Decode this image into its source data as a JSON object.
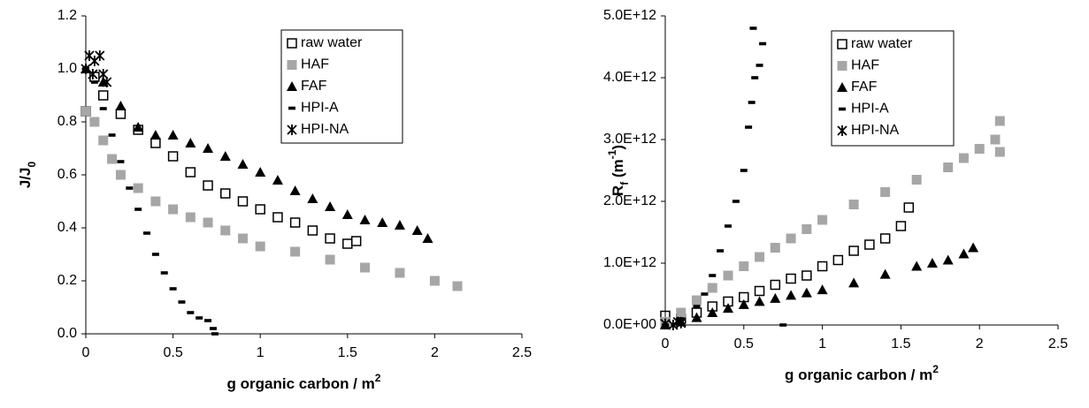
{
  "chart_data": [
    {
      "type": "scatter",
      "xlabel_parts": [
        {
          "text": "g organic carbon / m"
        },
        {
          "text": "2",
          "script": "sup"
        }
      ],
      "ylabel_parts": [
        {
          "text": "J/J"
        },
        {
          "text": "0",
          "script": "sub"
        }
      ],
      "xlim": [
        0,
        2.5
      ],
      "xticks": [
        0,
        0.5,
        1,
        1.5,
        2,
        2.5
      ],
      "ylim": [
        0,
        1.2
      ],
      "yticks": [
        {
          "value": 0,
          "label": "0.0"
        },
        0.2,
        0.4,
        0.6,
        0.8,
        {
          "value": 1,
          "label": "1.0"
        },
        1.2
      ],
      "grid": false,
      "legend": "upper right",
      "series": [
        {
          "name": "raw water",
          "color": "#000000",
          "marker": "square-open",
          "x": [
            0,
            0.05,
            0.1,
            0.2,
            0.3,
            0.4,
            0.5,
            0.6,
            0.7,
            0.8,
            0.9,
            1.0,
            1.1,
            1.2,
            1.3,
            1.4,
            1.5,
            1.55
          ],
          "y": [
            0.84,
            0.97,
            0.9,
            0.83,
            0.77,
            0.72,
            0.67,
            0.61,
            0.56,
            0.53,
            0.5,
            0.47,
            0.44,
            0.42,
            0.39,
            0.36,
            0.34,
            0.35
          ]
        },
        {
          "name": "HAF",
          "color": "#a6a6a6",
          "marker": "square",
          "x": [
            0,
            0.05,
            0.1,
            0.15,
            0.2,
            0.3,
            0.4,
            0.5,
            0.6,
            0.7,
            0.8,
            0.9,
            1.0,
            1.2,
            1.4,
            1.6,
            1.8,
            2.0,
            2.13
          ],
          "y": [
            0.84,
            0.8,
            0.73,
            0.66,
            0.6,
            0.55,
            0.5,
            0.47,
            0.44,
            0.42,
            0.39,
            0.36,
            0.33,
            0.31,
            0.28,
            0.25,
            0.23,
            0.2,
            0.18
          ]
        },
        {
          "name": "FAF",
          "color": "#000000",
          "marker": "triangle",
          "x": [
            0,
            0.1,
            0.2,
            0.3,
            0.4,
            0.5,
            0.6,
            0.7,
            0.8,
            0.9,
            1.0,
            1.1,
            1.2,
            1.3,
            1.4,
            1.5,
            1.6,
            1.7,
            1.8,
            1.9,
            1.96
          ],
          "y": [
            1.0,
            0.95,
            0.86,
            0.78,
            0.75,
            0.75,
            0.72,
            0.7,
            0.67,
            0.64,
            0.61,
            0.58,
            0.54,
            0.51,
            0.48,
            0.45,
            0.43,
            0.42,
            0.41,
            0.39,
            0.36
          ]
        },
        {
          "name": "HPI-A",
          "color": "#000000",
          "marker": "dash",
          "x": [
            0,
            0.05,
            0.1,
            0.15,
            0.2,
            0.25,
            0.3,
            0.35,
            0.4,
            0.45,
            0.5,
            0.55,
            0.6,
            0.65,
            0.7,
            0.73,
            0.74
          ],
          "y": [
            1.0,
            0.95,
            0.85,
            0.75,
            0.65,
            0.55,
            0.47,
            0.38,
            0.3,
            0.23,
            0.17,
            0.12,
            0.08,
            0.06,
            0.05,
            0.02,
            0
          ]
        },
        {
          "name": "HPI-NA",
          "color": "#000000",
          "marker": "star",
          "x": [
            0,
            0.02,
            0.04,
            0.05,
            0.08,
            0.1,
            0.12
          ],
          "y": [
            1.0,
            1.05,
            0.98,
            1.03,
            1.05,
            0.98,
            0.95
          ]
        }
      ]
    },
    {
      "type": "scatter",
      "xlabel_parts": [
        {
          "text": "g organic carbon / m"
        },
        {
          "text": "2",
          "script": "sup"
        }
      ],
      "ylabel_parts": [
        {
          "text": "R"
        },
        {
          "text": "f",
          "script": "sub"
        },
        {
          "text": " (m"
        },
        {
          "text": "-1",
          "script": "sup"
        },
        {
          "text": ")"
        }
      ],
      "xlim": [
        0,
        2.5
      ],
      "xticks": [
        0,
        0.5,
        1,
        1.5,
        2,
        2.5
      ],
      "ylim": [
        0,
        5000000000000.0
      ],
      "yticks": [
        {
          "value": 0,
          "label": "0.0E+00"
        },
        {
          "value": 1000000000000.0,
          "label": "1.0E+12"
        },
        {
          "value": 2000000000000.0,
          "label": "2.0E+12"
        },
        {
          "value": 3000000000000.0,
          "label": "3.0E+12"
        },
        {
          "value": 4000000000000.0,
          "label": "4.0E+12"
        },
        {
          "value": 5000000000000.0,
          "label": "5.0E+12"
        }
      ],
      "grid": false,
      "legend": "upper right",
      "series": [
        {
          "name": "raw water",
          "color": "#000000",
          "marker": "square-open",
          "x": [
            0,
            0.1,
            0.2,
            0.3,
            0.4,
            0.5,
            0.6,
            0.7,
            0.8,
            0.9,
            1.0,
            1.1,
            1.2,
            1.3,
            1.4,
            1.5,
            1.55
          ],
          "y": [
            150000000000.0,
            100000000000.0,
            200000000000.0,
            300000000000.0,
            380000000000.0,
            450000000000.0,
            550000000000.0,
            650000000000.0,
            750000000000.0,
            800000000000.0,
            950000000000.0,
            1050000000000.0,
            1200000000000.0,
            1300000000000.0,
            1400000000000.0,
            1600000000000.0,
            1900000000000.0
          ]
        },
        {
          "name": "HAF",
          "color": "#a6a6a6",
          "marker": "square",
          "x": [
            0,
            0.1,
            0.2,
            0.3,
            0.4,
            0.5,
            0.6,
            0.7,
            0.8,
            0.9,
            1.0,
            1.2,
            1.4,
            1.6,
            1.8,
            1.9,
            2.0,
            2.1,
            2.13,
            2.13
          ],
          "y": [
            50000000000.0,
            200000000000.0,
            400000000000.0,
            600000000000.0,
            800000000000.0,
            950000000000.0,
            1100000000000.0,
            1250000000000.0,
            1400000000000.0,
            1550000000000.0,
            1700000000000.0,
            1950000000000.0,
            2150000000000.0,
            2350000000000.0,
            2550000000000.0,
            2700000000000.0,
            2850000000000.0,
            3000000000000.0,
            3300000000000.0,
            2800000000000.0
          ]
        },
        {
          "name": "FAF",
          "color": "#000000",
          "marker": "triangle",
          "x": [
            0,
            0.1,
            0.2,
            0.3,
            0.4,
            0.5,
            0.6,
            0.7,
            0.8,
            0.9,
            1.0,
            1.2,
            1.4,
            1.6,
            1.7,
            1.8,
            1.9,
            1.96
          ],
          "y": [
            0,
            50000000000.0,
            120000000000.0,
            200000000000.0,
            270000000000.0,
            330000000000.0,
            380000000000.0,
            430000000000.0,
            480000000000.0,
            520000000000.0,
            570000000000.0,
            680000000000.0,
            820000000000.0,
            950000000000.0,
            1000000000000.0,
            1050000000000.0,
            1150000000000.0,
            1250000000000.0
          ]
        },
        {
          "name": "HPI-A",
          "color": "#000000",
          "marker": "dash",
          "x": [
            0,
            0.1,
            0.2,
            0.25,
            0.3,
            0.35,
            0.4,
            0.45,
            0.5,
            0.53,
            0.55,
            0.57,
            0.56,
            0.6,
            0.62,
            0.75
          ],
          "y": [
            0,
            100000000000.0,
            300000000000.0,
            500000000000.0,
            800000000000.0,
            1200000000000.0,
            1600000000000.0,
            2000000000000.0,
            2500000000000.0,
            3200000000000.0,
            3600000000000.0,
            4000000000000.0,
            4800000000000.0,
            4200000000000.0,
            4550000000000.0,
            0
          ]
        },
        {
          "name": "HPI-NA",
          "color": "#000000",
          "marker": "star",
          "x": [
            0,
            0.05,
            0.08,
            0.1
          ],
          "y": [
            20000000000.0,
            0,
            50000000000.0,
            30000000000.0
          ]
        }
      ]
    }
  ]
}
